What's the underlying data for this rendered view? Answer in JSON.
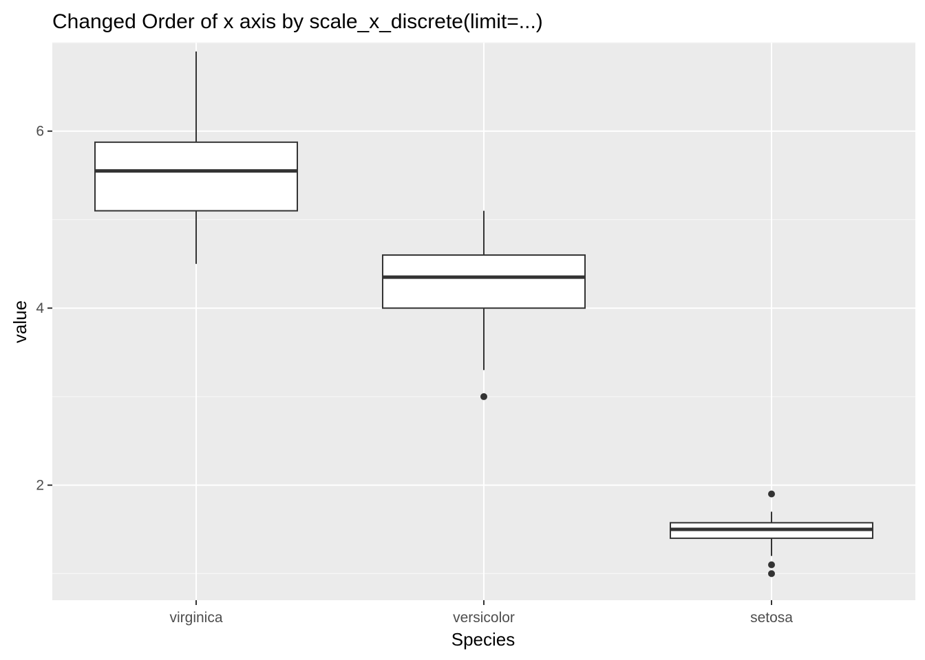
{
  "chart_data": {
    "type": "boxplot",
    "title": "Changed Order of x axis by scale_x_discrete(limit=...)",
    "xlabel": "Species",
    "ylabel": "value",
    "categories": [
      "virginica",
      "versicolor",
      "setosa"
    ],
    "ylim": [
      0.7,
      7.0
    ],
    "y_ticks": [
      2,
      4,
      6
    ],
    "y_minor_ticks": [
      1,
      3,
      5,
      7
    ],
    "grid": true,
    "colors": {
      "panel_bg": "#ebebeb",
      "grid_major": "#ffffff",
      "grid_minor": "#f7f7f7",
      "box_fill": "#ffffff",
      "box_stroke": "#333333",
      "outlier": "#333333"
    },
    "boxes": [
      {
        "category": "virginica",
        "whisker_low": 4.5,
        "q1": 5.1,
        "median": 5.55,
        "q3": 5.875,
        "whisker_high": 6.9,
        "outliers": []
      },
      {
        "category": "versicolor",
        "whisker_low": 3.3,
        "q1": 4.0,
        "median": 4.35,
        "q3": 4.6,
        "whisker_high": 5.1,
        "outliers": [
          3.0
        ]
      },
      {
        "category": "setosa",
        "whisker_low": 1.2,
        "q1": 1.4,
        "median": 1.5,
        "q3": 1.575,
        "whisker_high": 1.7,
        "outliers": [
          1.9,
          1.1,
          1.0
        ]
      }
    ]
  }
}
